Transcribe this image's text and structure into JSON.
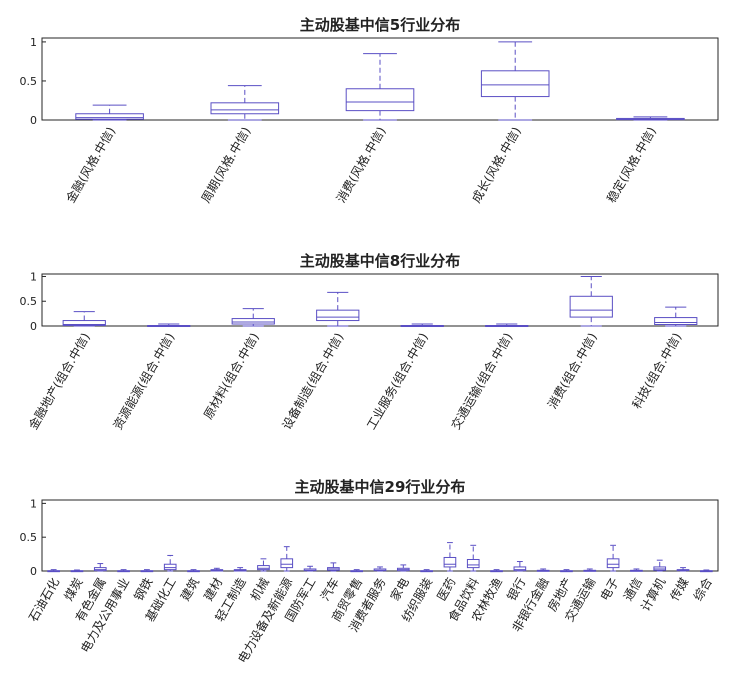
{
  "style": {
    "box_color": "#5a4fc4",
    "axis_color": "#262626"
  },
  "chart_data": [
    {
      "type": "box",
      "title": "主动股基中信5行业分布",
      "ylim": [
        0,
        1.05
      ],
      "yticks": [
        "0",
        "0.5",
        "1"
      ],
      "categories": [
        "金融(风格.中信)",
        "周期(风格.中信)",
        "消费(风格.中信)",
        "成长(风格.中信)",
        "稳定(风格.中信)"
      ],
      "series": [
        {
          "min": 0,
          "q1": 0.01,
          "median": 0.03,
          "q3": 0.08,
          "max": 0.19
        },
        {
          "min": 0,
          "q1": 0.08,
          "median": 0.13,
          "q3": 0.22,
          "max": 0.44
        },
        {
          "min": 0,
          "q1": 0.12,
          "median": 0.23,
          "q3": 0.4,
          "max": 0.85
        },
        {
          "min": 0,
          "q1": 0.3,
          "median": 0.45,
          "q3": 0.63,
          "max": 1.0
        },
        {
          "min": 0,
          "q1": 0.005,
          "median": 0.01,
          "q3": 0.02,
          "max": 0.04
        }
      ]
    },
    {
      "type": "box",
      "title": "主动股基中信8行业分布",
      "ylim": [
        0,
        1.05
      ],
      "yticks": [
        "0",
        "0.5",
        "1"
      ],
      "categories": [
        "金融地产(组合.中信)",
        "资源能源(组合.中信)",
        "原材料(组合.中信)",
        "设备制造(组合.中信)",
        "工业服务(组合.中信)",
        "交通运输(组合.中信)",
        "消费(组合.中信)",
        "科技(组合.中信)"
      ],
      "series": [
        {
          "min": 0,
          "q1": 0.01,
          "median": 0.03,
          "q3": 0.11,
          "max": 0.29
        },
        {
          "min": 0,
          "q1": 0,
          "median": 0.005,
          "q3": 0.01,
          "max": 0.04
        },
        {
          "min": 0,
          "q1": 0.04,
          "median": 0.08,
          "q3": 0.15,
          "max": 0.35
        },
        {
          "min": 0,
          "q1": 0.11,
          "median": 0.18,
          "q3": 0.32,
          "max": 0.68
        },
        {
          "min": 0,
          "q1": 0,
          "median": 0.005,
          "q3": 0.01,
          "max": 0.04
        },
        {
          "min": 0,
          "q1": 0,
          "median": 0.005,
          "q3": 0.01,
          "max": 0.04
        },
        {
          "min": 0,
          "q1": 0.18,
          "median": 0.32,
          "q3": 0.6,
          "max": 1.0
        },
        {
          "min": 0,
          "q1": 0.03,
          "median": 0.07,
          "q3": 0.17,
          "max": 0.38
        }
      ]
    },
    {
      "type": "box",
      "title": "主动股基中信29行业分布",
      "ylim": [
        0,
        1.05
      ],
      "yticks": [
        "0",
        "0.5",
        "1"
      ],
      "categories": [
        "石油石化",
        "煤炭",
        "有色金属",
        "电力及公用事业",
        "钢铁",
        "基础化工",
        "建筑",
        "建材",
        "轻工制造",
        "机械",
        "电力设备及新能源",
        "国防军工",
        "汽车",
        "商贸零售",
        "消费者服务",
        "家电",
        "纺织服装",
        "医药",
        "食品饮料",
        "农林牧渔",
        "银行",
        "非银行金融",
        "房地产",
        "交通运输",
        "电子",
        "通信",
        "计算机",
        "传媒",
        "综合"
      ],
      "series": [
        {
          "min": 0,
          "q1": 0,
          "median": 0,
          "q3": 0.005,
          "max": 0.02
        },
        {
          "min": 0,
          "q1": 0,
          "median": 0,
          "q3": 0.005,
          "max": 0.015
        },
        {
          "min": 0,
          "q1": 0.005,
          "median": 0.02,
          "q3": 0.05,
          "max": 0.11
        },
        {
          "min": 0,
          "q1": 0,
          "median": 0,
          "q3": 0.005,
          "max": 0.02
        },
        {
          "min": 0,
          "q1": 0,
          "median": 0,
          "q3": 0.005,
          "max": 0.02
        },
        {
          "min": 0,
          "q1": 0.02,
          "median": 0.05,
          "q3": 0.1,
          "max": 0.23
        },
        {
          "min": 0,
          "q1": 0,
          "median": 0,
          "q3": 0.005,
          "max": 0.02
        },
        {
          "min": 0,
          "q1": 0,
          "median": 0.01,
          "q3": 0.02,
          "max": 0.04
        },
        {
          "min": 0,
          "q1": 0,
          "median": 0.01,
          "q3": 0.02,
          "max": 0.05
        },
        {
          "min": 0,
          "q1": 0.02,
          "median": 0.04,
          "q3": 0.08,
          "max": 0.18
        },
        {
          "min": 0,
          "q1": 0.05,
          "median": 0.1,
          "q3": 0.18,
          "max": 0.36
        },
        {
          "min": 0,
          "q1": 0.005,
          "median": 0.01,
          "q3": 0.03,
          "max": 0.07
        },
        {
          "min": 0,
          "q1": 0.01,
          "median": 0.03,
          "q3": 0.05,
          "max": 0.12
        },
        {
          "min": 0,
          "q1": 0,
          "median": 0,
          "q3": 0.005,
          "max": 0.02
        },
        {
          "min": 0,
          "q1": 0.005,
          "median": 0.01,
          "q3": 0.03,
          "max": 0.06
        },
        {
          "min": 0,
          "q1": 0.005,
          "median": 0.02,
          "q3": 0.04,
          "max": 0.09
        },
        {
          "min": 0,
          "q1": 0,
          "median": 0,
          "q3": 0.005,
          "max": 0.02
        },
        {
          "min": 0,
          "q1": 0.06,
          "median": 0.1,
          "q3": 0.2,
          "max": 0.42
        },
        {
          "min": 0,
          "q1": 0.05,
          "median": 0.09,
          "q3": 0.17,
          "max": 0.38
        },
        {
          "min": 0,
          "q1": 0,
          "median": 0,
          "q3": 0.005,
          "max": 0.02
        },
        {
          "min": 0,
          "q1": 0.005,
          "median": 0.02,
          "q3": 0.06,
          "max": 0.14
        },
        {
          "min": 0,
          "q1": 0,
          "median": 0.005,
          "q3": 0.01,
          "max": 0.03
        },
        {
          "min": 0,
          "q1": 0,
          "median": 0,
          "q3": 0.005,
          "max": 0.02
        },
        {
          "min": 0,
          "q1": 0,
          "median": 0.005,
          "q3": 0.01,
          "max": 0.03
        },
        {
          "min": 0,
          "q1": 0.05,
          "median": 0.1,
          "q3": 0.18,
          "max": 0.38
        },
        {
          "min": 0,
          "q1": 0,
          "median": 0.005,
          "q3": 0.01,
          "max": 0.03
        },
        {
          "min": 0,
          "q1": 0.01,
          "median": 0.03,
          "q3": 0.06,
          "max": 0.16
        },
        {
          "min": 0,
          "q1": 0.005,
          "median": 0.01,
          "q3": 0.02,
          "max": 0.05
        },
        {
          "min": 0,
          "q1": 0,
          "median": 0,
          "q3": 0.005,
          "max": 0.015
        }
      ]
    }
  ]
}
